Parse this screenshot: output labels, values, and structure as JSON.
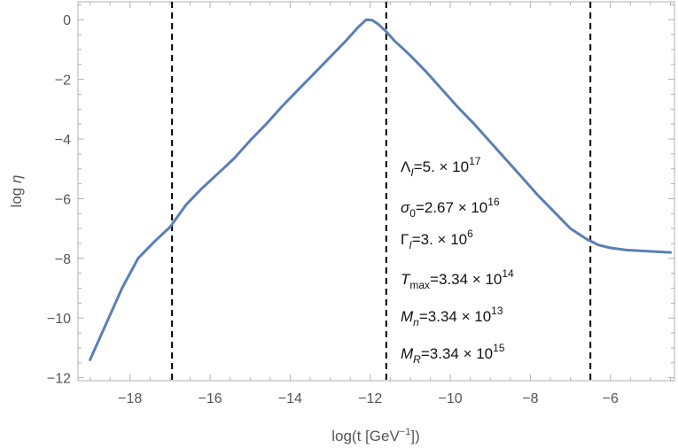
{
  "chart_data": {
    "type": "line",
    "xlabel_main": "log(t [GeV",
    "xlabel_sup": "−1",
    "xlabel_tail": "])",
    "ylabel_main": "log ",
    "ylabel_sym": "η",
    "xlim": [
      -19.3,
      -4.4
    ],
    "ylim": [
      -12.1,
      0.6
    ],
    "x_ticks": [
      -18,
      -16,
      -14,
      -12,
      -10,
      -8,
      -6
    ],
    "x_tick_labels": [
      "−18",
      "−16",
      "−14",
      "−12",
      "−10",
      "−8",
      "−6"
    ],
    "y_ticks": [
      0,
      -2,
      -4,
      -6,
      -8,
      -10,
      -12
    ],
    "y_tick_labels": [
      "0",
      "−2",
      "−4",
      "−6",
      "−8",
      "−10",
      "−12"
    ],
    "vlines": [
      -16.95,
      -11.6,
      -6.5
    ],
    "line_color": "#5b7fb5",
    "series": [
      {
        "x": [
          -19.0,
          -18.6,
          -18.2,
          -17.8,
          -17.4,
          -17.0,
          -16.6,
          -16.2,
          -15.8,
          -15.4,
          -15.0,
          -14.6,
          -14.2,
          -13.8,
          -13.4,
          -13.0,
          -12.6,
          -12.3,
          -12.1,
          -11.95,
          -11.8,
          -11.6,
          -11.4,
          -11.2,
          -11.0,
          -10.6,
          -10.2,
          -9.8,
          -9.4,
          -9.0,
          -8.6,
          -8.2,
          -7.8,
          -7.4,
          -7.0,
          -6.6,
          -6.3,
          -6.0,
          -5.6,
          -5.2,
          -4.8,
          -4.5
        ],
        "y": [
          -11.4,
          -10.2,
          -9.0,
          -8.0,
          -7.45,
          -6.95,
          -6.2,
          -5.65,
          -5.15,
          -4.65,
          -4.05,
          -3.5,
          -2.9,
          -2.35,
          -1.8,
          -1.25,
          -0.7,
          -0.25,
          0.0,
          -0.02,
          -0.15,
          -0.4,
          -0.7,
          -0.95,
          -1.2,
          -1.75,
          -2.35,
          -2.95,
          -3.5,
          -4.1,
          -4.7,
          -5.3,
          -5.9,
          -6.45,
          -7.0,
          -7.35,
          -7.55,
          -7.65,
          -7.72,
          -7.75,
          -7.78,
          -7.8
        ]
      }
    ]
  },
  "annotations": {
    "lambda": {
      "sym": "Λ",
      "sub": "I",
      "val": "=5. × 10",
      "exp": "17"
    },
    "sigma": {
      "sym": "σ",
      "sub": "0",
      "val": "=2.67 × 10",
      "exp": "16"
    },
    "gamma": {
      "sym": "Γ",
      "sub": "I",
      "val": "=3. × 10",
      "exp": "6"
    },
    "tmax": {
      "sym": "T",
      "sub": "max",
      "val": "=3.34 × 10",
      "exp": "14"
    },
    "mn": {
      "sym": "M",
      "sub": "n",
      "val": "=3.34 × 10",
      "exp": "13"
    },
    "mr": {
      "sym": "M",
      "sub": "R",
      "val": "=3.34 × 10",
      "exp": "15"
    }
  }
}
